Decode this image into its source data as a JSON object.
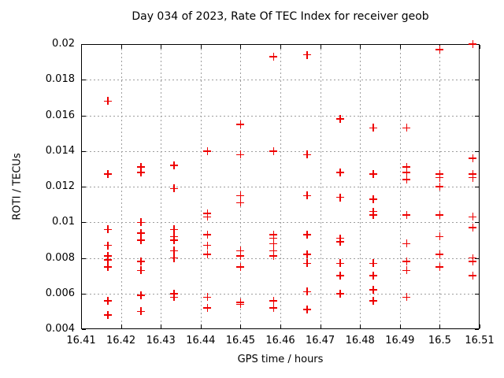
{
  "page": {
    "background": "#ffffff"
  },
  "chart_data": {
    "type": "scatter",
    "title": "Day 034 of 2023, Rate Of TEC Index for receiver geob",
    "xlabel": "GPS time / hours",
    "ylabel": "ROTI / TECUs",
    "xlim": [
      16.41,
      16.51
    ],
    "ylim": [
      0.004,
      0.02
    ],
    "xtick_values": [
      16.41,
      16.42,
      16.43,
      16.44,
      16.45,
      16.46,
      16.47,
      16.48,
      16.49,
      16.5,
      16.51
    ],
    "xtick_labels": [
      "16.41",
      "16.42",
      "16.43",
      "16.44",
      "16.45",
      "16.46",
      "16.47",
      "16.48",
      "16.49",
      "16.5",
      "16.51"
    ],
    "ytick_values": [
      0.004,
      0.006,
      0.008,
      0.01,
      0.012,
      0.014,
      0.016,
      0.018,
      0.02
    ],
    "ytick_labels": [
      "0.004",
      "0.006",
      "0.008",
      "0.01",
      "0.012",
      "0.014",
      "0.016",
      "0.018",
      "0.02"
    ],
    "grid": true,
    "legend": "none",
    "marker": "plus",
    "marker_color": "#ee0000",
    "grid_color": "#9e9e9e",
    "axis_color": "#000000",
    "series": [
      {
        "name": "ROTI",
        "points": [
          [
            16.4167,
            0.0168
          ],
          [
            16.4167,
            0.0127
          ],
          [
            16.4167,
            0.0096
          ],
          [
            16.4167,
            0.0087
          ],
          [
            16.4167,
            0.0081
          ],
          [
            16.4167,
            0.0079
          ],
          [
            16.4167,
            0.0075
          ],
          [
            16.4167,
            0.0056
          ],
          [
            16.4167,
            0.0048
          ],
          [
            16.425,
            0.0131
          ],
          [
            16.425,
            0.0128
          ],
          [
            16.425,
            0.01
          ],
          [
            16.425,
            0.0094
          ],
          [
            16.425,
            0.009
          ],
          [
            16.425,
            0.0078
          ],
          [
            16.425,
            0.0073
          ],
          [
            16.425,
            0.0059
          ],
          [
            16.425,
            0.005
          ],
          [
            16.4333,
            0.0132
          ],
          [
            16.4333,
            0.0119
          ],
          [
            16.4333,
            0.0096
          ],
          [
            16.4333,
            0.0092
          ],
          [
            16.4333,
            0.009
          ],
          [
            16.4333,
            0.0084
          ],
          [
            16.4333,
            0.008
          ],
          [
            16.4333,
            0.006
          ],
          [
            16.4333,
            0.0058
          ],
          [
            16.4417,
            0.014
          ],
          [
            16.4417,
            0.0105
          ],
          [
            16.4417,
            0.0103
          ],
          [
            16.4417,
            0.0093
          ],
          [
            16.4417,
            0.0087
          ],
          [
            16.4417,
            0.0082
          ],
          [
            16.4417,
            0.0058
          ],
          [
            16.4417,
            0.0052
          ],
          [
            16.45,
            0.0155
          ],
          [
            16.45,
            0.0138
          ],
          [
            16.45,
            0.0115
          ],
          [
            16.45,
            0.0111
          ],
          [
            16.45,
            0.0084
          ],
          [
            16.45,
            0.0081
          ],
          [
            16.45,
            0.0075
          ],
          [
            16.45,
            0.0055
          ],
          [
            16.45,
            0.0054
          ],
          [
            16.4583,
            0.0193
          ],
          [
            16.4583,
            0.014
          ],
          [
            16.4583,
            0.0093
          ],
          [
            16.4583,
            0.0091
          ],
          [
            16.4583,
            0.0088
          ],
          [
            16.4583,
            0.0084
          ],
          [
            16.4583,
            0.0081
          ],
          [
            16.4583,
            0.0056
          ],
          [
            16.4583,
            0.0052
          ],
          [
            16.4667,
            0.0194
          ],
          [
            16.4667,
            0.0138
          ],
          [
            16.4667,
            0.0115
          ],
          [
            16.4667,
            0.0093
          ],
          [
            16.4667,
            0.0082
          ],
          [
            16.4667,
            0.0077
          ],
          [
            16.4667,
            0.0061
          ],
          [
            16.4667,
            0.0051
          ],
          [
            16.475,
            0.0158
          ],
          [
            16.475,
            0.0128
          ],
          [
            16.475,
            0.0114
          ],
          [
            16.475,
            0.0091
          ],
          [
            16.475,
            0.0089
          ],
          [
            16.475,
            0.0077
          ],
          [
            16.475,
            0.007
          ],
          [
            16.475,
            0.006
          ],
          [
            16.4833,
            0.0153
          ],
          [
            16.4833,
            0.0127
          ],
          [
            16.4833,
            0.0113
          ],
          [
            16.4833,
            0.0106
          ],
          [
            16.4833,
            0.0104
          ],
          [
            16.4833,
            0.0077
          ],
          [
            16.4833,
            0.007
          ],
          [
            16.4833,
            0.0062
          ],
          [
            16.4833,
            0.0056
          ],
          [
            16.4917,
            0.0153
          ],
          [
            16.4917,
            0.0131
          ],
          [
            16.4917,
            0.0128
          ],
          [
            16.4917,
            0.0124
          ],
          [
            16.4917,
            0.0104
          ],
          [
            16.4917,
            0.0088
          ],
          [
            16.4917,
            0.0078
          ],
          [
            16.4917,
            0.0073
          ],
          [
            16.4917,
            0.0058
          ],
          [
            16.5,
            0.0197
          ],
          [
            16.5,
            0.0127
          ],
          [
            16.5,
            0.0125
          ],
          [
            16.5,
            0.012
          ],
          [
            16.5,
            0.0104
          ],
          [
            16.5,
            0.0092
          ],
          [
            16.5,
            0.0082
          ],
          [
            16.5,
            0.0075
          ],
          [
            16.5083,
            0.02
          ],
          [
            16.5083,
            0.0136
          ],
          [
            16.5083,
            0.0127
          ],
          [
            16.5083,
            0.0125
          ],
          [
            16.5083,
            0.0103
          ],
          [
            16.5083,
            0.0097
          ],
          [
            16.5083,
            0.008
          ],
          [
            16.5083,
            0.0078
          ],
          [
            16.5083,
            0.007
          ]
        ]
      }
    ]
  }
}
